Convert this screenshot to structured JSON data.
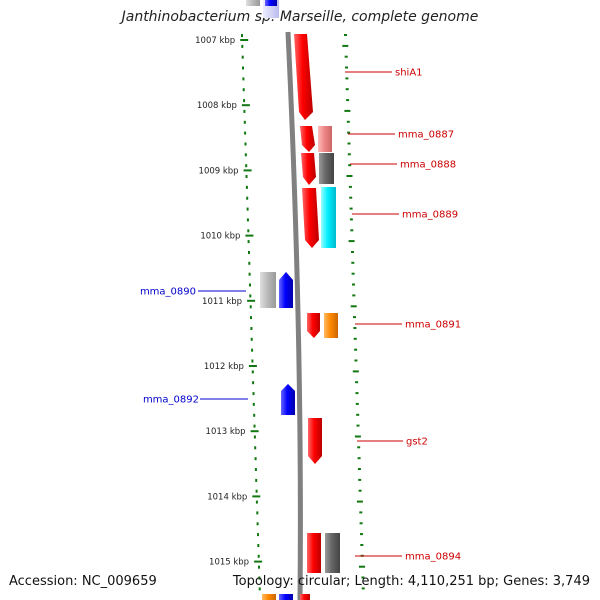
{
  "title": "Janthinobacterium sp. Marseille, complete genome",
  "accession": "Accession: NC_009659",
  "topology": "Topology: circular; Length: 4,110,251 bp; Genes: 3,749",
  "colors": {
    "forward_cds": "#ff0000",
    "reverse_cds": "#0000ff",
    "tick": "#117711",
    "backbone": "#808080",
    "label_forward": "#cc0000",
    "label_reverse": "#0000cc",
    "gray_feature": "#666666",
    "light_gray_feature": "#bbbbbb",
    "pink_feature": "#ee8888",
    "cyan_feature": "#00eeff",
    "orange_feature": "#ff8800"
  },
  "scale_labels": [
    "1007 kbp",
    "1008 kbp",
    "1009 kbp",
    "1010 kbp",
    "1011 kbp",
    "1012 kbp",
    "1013 kbp",
    "1014 kbp",
    "1015 kbp"
  ],
  "gene_labels": [
    {
      "text": "shiA1",
      "strand": "forward"
    },
    {
      "text": "mma_0887",
      "strand": "forward"
    },
    {
      "text": "mma_0888",
      "strand": "forward"
    },
    {
      "text": "mma_0889",
      "strand": "forward"
    },
    {
      "text": "mma_0890",
      "strand": "reverse"
    },
    {
      "text": "mma_0891",
      "strand": "forward"
    },
    {
      "text": "mma_0892",
      "strand": "reverse"
    },
    {
      "text": "gst2",
      "strand": "forward"
    },
    {
      "text": "mma_0894",
      "strand": "forward"
    }
  ]
}
